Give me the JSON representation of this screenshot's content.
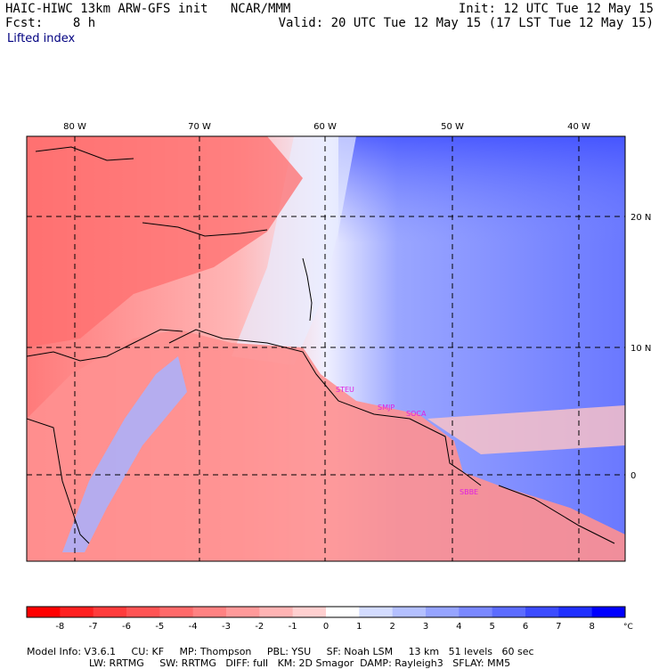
{
  "header": {
    "title_left": "HAIC-HIWC 13km ARW-GFS init",
    "org": "NCAR/MMM",
    "fcst_label": "Fcst:",
    "fcst_value": "8 h",
    "init": "Init: 12 UTC Tue 12 May 15",
    "valid": "Valid: 20 UTC Tue 12 May 15 (17 LST Tue 12 May 15)",
    "field": "Lifted index"
  },
  "map": {
    "lon_labels": [
      "80 W",
      "70 W",
      "60 W",
      "50 W",
      "40 W"
    ],
    "lat_labels": [
      "20 N",
      "10 N",
      "0"
    ],
    "station_labels": [
      "STEU",
      "SMJP",
      "SOCA",
      "SBBE"
    ]
  },
  "colorbar": {
    "ticks": [
      "-8",
      "-7",
      "-6",
      "-5",
      "-4",
      "-3",
      "-2",
      "-1",
      "0",
      "1",
      "2",
      "3",
      "4",
      "5",
      "6",
      "7",
      "8"
    ],
    "unit": "°C",
    "colors": [
      "#ff0000",
      "#ff2020",
      "#ff3c3c",
      "#ff5454",
      "#ff6a6a",
      "#ff8282",
      "#ff9a9a",
      "#ffb4b4",
      "#ffd0d0",
      "#ffffff",
      "#d4dcff",
      "#b4c0ff",
      "#96a4ff",
      "#7a88ff",
      "#5c6cff",
      "#3c4cff",
      "#2030ff",
      "#0000ff"
    ]
  },
  "footer": {
    "line1": [
      "Model Info: V3.6.1",
      "CU: KF",
      "MP: Thompson",
      "PBL: YSU",
      "SF: Noah LSM",
      "13 km",
      "51 levels",
      "60 sec"
    ],
    "line2": [
      "LW: RRTMG",
      "SW: RRTMG",
      "DIFF: full",
      "KM: 2D Smagor",
      "DAMP: Rayleigh3",
      "SFLAY: MM5"
    ]
  }
}
